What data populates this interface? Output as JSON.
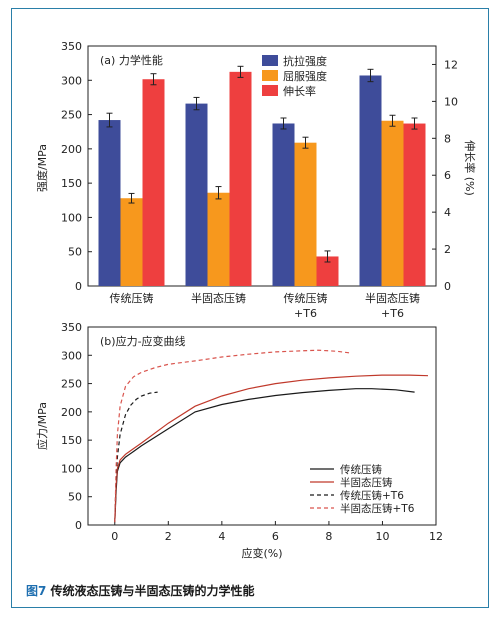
{
  "caption": {
    "figure_number": "图7",
    "text": "传统液态压铸与半固态压铸的力学性能"
  },
  "chart_data": [
    {
      "type": "bar",
      "title": "(a) 力学性能",
      "xlabel": "",
      "ylabel": "强度/MPa",
      "y2label": "伸长率 (%)",
      "ylim": [
        0,
        350
      ],
      "yticks": [
        0,
        50,
        100,
        150,
        200,
        250,
        300,
        350
      ],
      "y2lim": [
        0,
        13
      ],
      "y2ticks": [
        0,
        2,
        4,
        6,
        8,
        10,
        12
      ],
      "grid": false,
      "legend_position": "top-center",
      "categories": [
        [
          "传统压铸"
        ],
        [
          "半固态压铸"
        ],
        [
          "传统压铸",
          "+T6"
        ],
        [
          "半固态压铸",
          "+T6"
        ]
      ],
      "series": [
        {
          "name": "抗拉强度",
          "axis": "left",
          "color": "#3e4c9a",
          "values": [
            242,
            266,
            237,
            307
          ],
          "errors": [
            10,
            9,
            8,
            9
          ]
        },
        {
          "name": "屈服强度",
          "axis": "left",
          "color": "#f7981d",
          "values": [
            128,
            136,
            209,
            241
          ],
          "errors": [
            7,
            9,
            8,
            8
          ]
        },
        {
          "name": "伸长率",
          "axis": "right",
          "color": "#ee3f3f",
          "values": [
            11.2,
            11.6,
            1.6,
            8.8
          ],
          "errors": [
            0.3,
            0.3,
            0.3,
            0.3
          ]
        }
      ]
    },
    {
      "type": "line",
      "title": "(b)应力-应变曲线",
      "xlabel": "应变(%)",
      "ylabel": "应力/MPa",
      "xlim": [
        -1,
        12
      ],
      "xticks": [
        0,
        2,
        4,
        6,
        8,
        10,
        12
      ],
      "ylim": [
        0,
        350
      ],
      "yticks": [
        0,
        50,
        100,
        150,
        200,
        250,
        300,
        350
      ],
      "grid": false,
      "legend_position": "bottom-right",
      "series": [
        {
          "name": "传统压铸",
          "color": "#1a1a1a",
          "dash": "solid",
          "x": [
            0,
            0.05,
            0.1,
            0.2,
            0.4,
            0.7,
            1,
            2,
            3,
            4,
            5,
            6,
            7,
            8,
            9,
            9.6,
            10.5,
            11.2
          ],
          "y": [
            5,
            60,
            95,
            110,
            120,
            130,
            140,
            170,
            200,
            213,
            222,
            229,
            234,
            238,
            241,
            241,
            239,
            235
          ]
        },
        {
          "name": "半固态压铸",
          "color": "#c0392b",
          "dash": "solid",
          "x": [
            0,
            0.05,
            0.1,
            0.2,
            0.4,
            0.7,
            1,
            2,
            3,
            4,
            5,
            6,
            7,
            8,
            9,
            10,
            11,
            11.7
          ],
          "y": [
            5,
            70,
            100,
            115,
            125,
            135,
            145,
            180,
            210,
            228,
            241,
            250,
            256,
            260,
            263,
            265,
            265,
            264
          ]
        },
        {
          "name": "传统压铸+T6",
          "color": "#1a1a1a",
          "dash": "dashed",
          "x": [
            0,
            0.05,
            0.1,
            0.2,
            0.4,
            0.6,
            0.8,
            1.0,
            1.3,
            1.6
          ],
          "y": [
            5,
            80,
            120,
            160,
            195,
            212,
            222,
            228,
            233,
            235
          ]
        },
        {
          "name": "半固态压铸+T6",
          "color": "#d9544d",
          "dash": "dashed",
          "x": [
            0,
            0.05,
            0.1,
            0.2,
            0.4,
            0.7,
            1,
            1.5,
            2,
            3,
            4,
            5,
            6,
            7,
            7.6,
            8.3,
            8.8
          ],
          "y": [
            5,
            100,
            160,
            210,
            245,
            262,
            270,
            278,
            284,
            290,
            297,
            302,
            306,
            308,
            309,
            307,
            304
          ]
        }
      ]
    }
  ]
}
